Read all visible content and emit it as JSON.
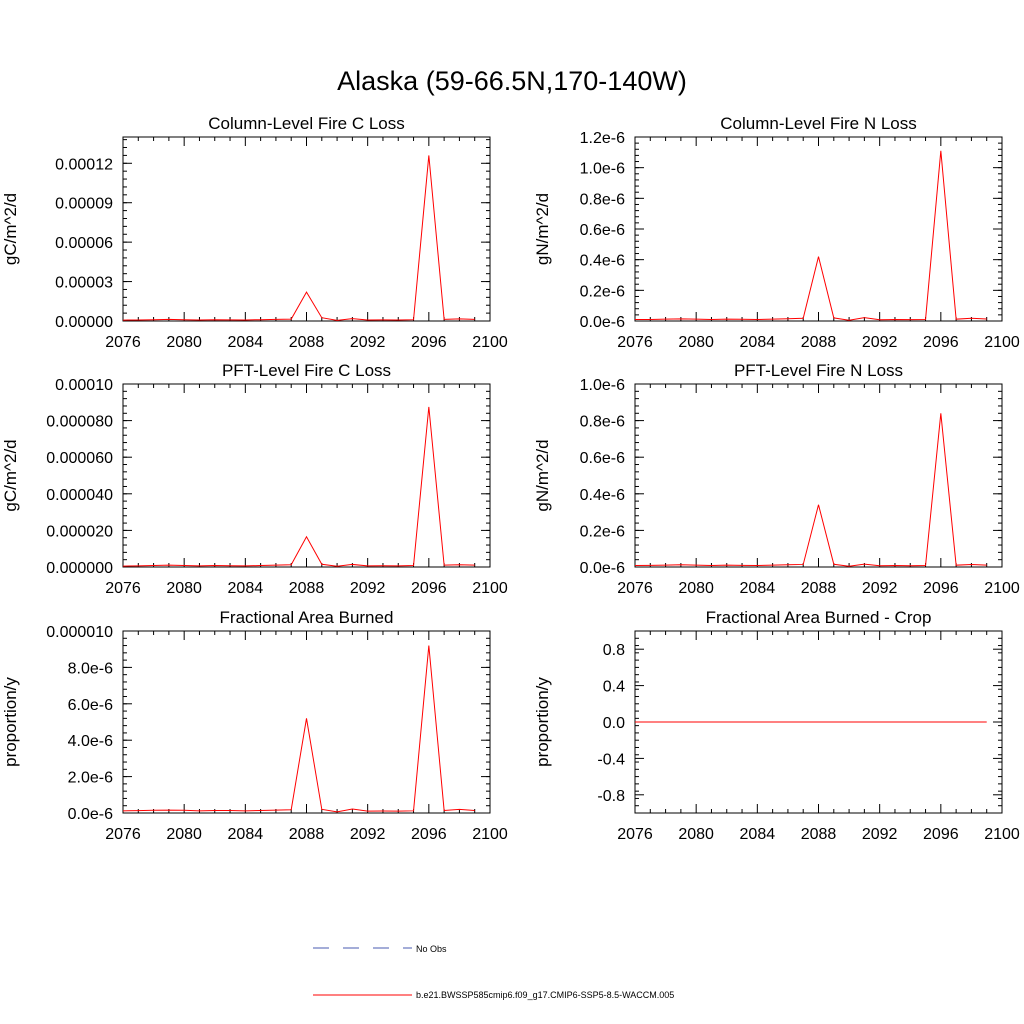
{
  "figure": {
    "title": "Alaska (59-66.5N,170-140W)"
  },
  "legend": {
    "entries": [
      {
        "label": "No Obs",
        "color": "#4a5bb0",
        "style": "dashed"
      },
      {
        "label": "b.e21.BWSSP585cmip6.f09_g17.CMIP6-SSP5-8.5-WACCM.005",
        "color": "#ff0000",
        "style": "solid"
      }
    ]
  },
  "chart_data": [
    {
      "type": "line",
      "title": "Column-Level Fire C Loss",
      "ylabel": "gC/m^2/d",
      "xlim": [
        2076,
        2100
      ],
      "ylim": [
        0,
        0.00014
      ],
      "xticks": [
        2076,
        2080,
        2084,
        2088,
        2092,
        2096,
        2100
      ],
      "yticks": [
        0,
        3e-05,
        6e-05,
        9e-05,
        0.00012
      ],
      "ytick_labels": [
        "0.00000",
        "0.00003",
        "0.00006",
        "0.00009",
        "0.00012"
      ],
      "series": [
        {
          "color": "#ff0000",
          "x": [
            2076,
            2077,
            2078,
            2079,
            2080,
            2081,
            2082,
            2083,
            2084,
            2085,
            2086,
            2087,
            2088,
            2089,
            2090,
            2091,
            2092,
            2093,
            2094,
            2095,
            2096,
            2097,
            2098,
            2099
          ],
          "y": [
            7e-07,
            8e-07,
            1e-06,
            1.2e-06,
            1e-06,
            8e-07,
            1e-06,
            9e-07,
            8e-07,
            1e-06,
            1.2e-06,
            1.4e-06,
            2.2e-05,
            2.5e-06,
            5e-07,
            1.8e-06,
            8e-07,
            9e-07,
            8e-07,
            1e-06,
            0.000126,
            1.2e-06,
            1.6e-06,
            1.2e-06
          ]
        }
      ]
    },
    {
      "type": "line",
      "title": "Column-Level Fire N Loss",
      "ylabel": "gN/m^2/d",
      "xlim": [
        2076,
        2100
      ],
      "ylim": [
        0,
        1.2e-06
      ],
      "xticks": [
        2076,
        2080,
        2084,
        2088,
        2092,
        2096,
        2100
      ],
      "yticks": [
        0,
        2e-07,
        4e-07,
        6e-07,
        8e-07,
        1e-06,
        1.2e-06
      ],
      "ytick_labels": [
        "0.0e-6",
        "0.2e-6",
        "0.4e-6",
        "0.6e-6",
        "0.8e-6",
        "1.0e-6",
        "1.2e-6"
      ],
      "series": [
        {
          "color": "#ff0000",
          "x": [
            2076,
            2077,
            2078,
            2079,
            2080,
            2081,
            2082,
            2083,
            2084,
            2085,
            2086,
            2087,
            2088,
            2089,
            2090,
            2091,
            2092,
            2093,
            2094,
            2095,
            2096,
            2097,
            2098,
            2099
          ],
          "y": [
            1e-08,
            1e-08,
            1.2e-08,
            1.4e-08,
            1.2e-08,
            1e-08,
            1.2e-08,
            1.1e-08,
            1e-08,
            1.2e-08,
            1.5e-08,
            1.8e-08,
            4.2e-07,
            2e-08,
            5e-09,
            2.2e-08,
            8e-09,
            1e-08,
            9e-09,
            1e-08,
            1.11e-06,
            1.2e-08,
            1.8e-08,
            1.3e-08
          ]
        }
      ]
    },
    {
      "type": "line",
      "title": "PFT-Level Fire C Loss",
      "ylabel": "gC/m^2/d",
      "xlim": [
        2076,
        2100
      ],
      "ylim": [
        0,
        0.0001
      ],
      "xticks": [
        2076,
        2080,
        2084,
        2088,
        2092,
        2096,
        2100
      ],
      "yticks": [
        0,
        2e-05,
        4e-05,
        6e-05,
        8e-05,
        0.0001
      ],
      "ytick_labels": [
        "0.000000",
        "0.000020",
        "0.000040",
        "0.000060",
        "0.000080",
        "0.00010"
      ],
      "series": [
        {
          "color": "#ff0000",
          "x": [
            2076,
            2077,
            2078,
            2079,
            2080,
            2081,
            2082,
            2083,
            2084,
            2085,
            2086,
            2087,
            2088,
            2089,
            2090,
            2091,
            2092,
            2093,
            2094,
            2095,
            2096,
            2097,
            2098,
            2099
          ],
          "y": [
            5e-07,
            6e-07,
            8e-07,
            1e-06,
            8e-07,
            6e-07,
            8e-07,
            7e-07,
            6e-07,
            8e-07,
            1e-06,
            1.2e-06,
            1.65e-05,
            1.5e-06,
            4e-07,
            1.4e-06,
            6e-07,
            7e-07,
            6e-07,
            8e-07,
            8.75e-05,
            1e-06,
            1.2e-06,
            1e-06
          ]
        }
      ]
    },
    {
      "type": "line",
      "title": "PFT-Level Fire N Loss",
      "ylabel": "gN/m^2/d",
      "xlim": [
        2076,
        2100
      ],
      "ylim": [
        0,
        1e-06
      ],
      "xticks": [
        2076,
        2080,
        2084,
        2088,
        2092,
        2096,
        2100
      ],
      "yticks": [
        0,
        2e-07,
        4e-07,
        6e-07,
        8e-07,
        1e-06
      ],
      "ytick_labels": [
        "0.0e-6",
        "0.2e-6",
        "0.4e-6",
        "0.6e-6",
        "0.8e-6",
        "1.0e-6"
      ],
      "series": [
        {
          "color": "#ff0000",
          "x": [
            2076,
            2077,
            2078,
            2079,
            2080,
            2081,
            2082,
            2083,
            2084,
            2085,
            2086,
            2087,
            2088,
            2089,
            2090,
            2091,
            2092,
            2093,
            2094,
            2095,
            2096,
            2097,
            2098,
            2099
          ],
          "y": [
            8e-09,
            9e-09,
            1e-08,
            1.2e-08,
            1e-08,
            8e-09,
            1e-08,
            9e-09,
            8e-09,
            1e-08,
            1.2e-08,
            1.4e-08,
            3.4e-07,
            1.5e-08,
            4e-09,
            1.6e-08,
            7e-09,
            8e-09,
            7e-09,
            8e-09,
            8.4e-07,
            1e-08,
            1.4e-08,
            1e-08
          ]
        }
      ]
    },
    {
      "type": "line",
      "title": "Fractional Area Burned",
      "ylabel": "proportion/y",
      "xlim": [
        2076,
        2100
      ],
      "ylim": [
        0,
        1e-05
      ],
      "xticks": [
        2076,
        2080,
        2084,
        2088,
        2092,
        2096,
        2100
      ],
      "yticks": [
        0,
        2e-06,
        4e-06,
        6e-06,
        8e-06,
        1e-05
      ],
      "ytick_labels": [
        "0.0e-6",
        "2.0e-6",
        "4.0e-6",
        "6.0e-6",
        "8.0e-6",
        "0.000010"
      ],
      "series": [
        {
          "color": "#ff0000",
          "x": [
            2076,
            2077,
            2078,
            2079,
            2080,
            2081,
            2082,
            2083,
            2084,
            2085,
            2086,
            2087,
            2088,
            2089,
            2090,
            2091,
            2092,
            2093,
            2094,
            2095,
            2096,
            2097,
            2098,
            2099
          ],
          "y": [
            1.2e-07,
            1.3e-07,
            1.5e-07,
            1.6e-07,
            1.5e-07,
            1.2e-07,
            1.4e-07,
            1.4e-07,
            1.2e-07,
            1.4e-07,
            1.6e-07,
            1.8e-07,
            5.2e-06,
            2e-07,
            6e-08,
            2.2e-07,
            1e-07,
            1.1e-07,
            1e-07,
            1.2e-07,
            9.2e-06,
            1.4e-07,
            2e-07,
            1.4e-07
          ]
        }
      ]
    },
    {
      "type": "line",
      "title": "Fractional Area Burned - Crop",
      "ylabel": "proportion/y",
      "xlim": [
        2076,
        2100
      ],
      "ylim": [
        -1,
        1
      ],
      "xticks": [
        2076,
        2080,
        2084,
        2088,
        2092,
        2096,
        2100
      ],
      "yticks": [
        -0.8,
        -0.4,
        0,
        0.4,
        0.8
      ],
      "ytick_labels": [
        "-0.8",
        "-0.4",
        "0.0",
        "0.4",
        "0.8"
      ],
      "series": [
        {
          "color": "#ff0000",
          "x": [
            2076,
            2077,
            2078,
            2079,
            2080,
            2081,
            2082,
            2083,
            2084,
            2085,
            2086,
            2087,
            2088,
            2089,
            2090,
            2091,
            2092,
            2093,
            2094,
            2095,
            2096,
            2097,
            2098,
            2099
          ],
          "y": [
            0,
            0,
            0,
            0,
            0,
            0,
            0,
            0,
            0,
            0,
            0,
            0,
            0,
            0,
            0,
            0,
            0,
            0,
            0,
            0,
            0,
            0,
            0,
            0
          ]
        }
      ]
    }
  ]
}
